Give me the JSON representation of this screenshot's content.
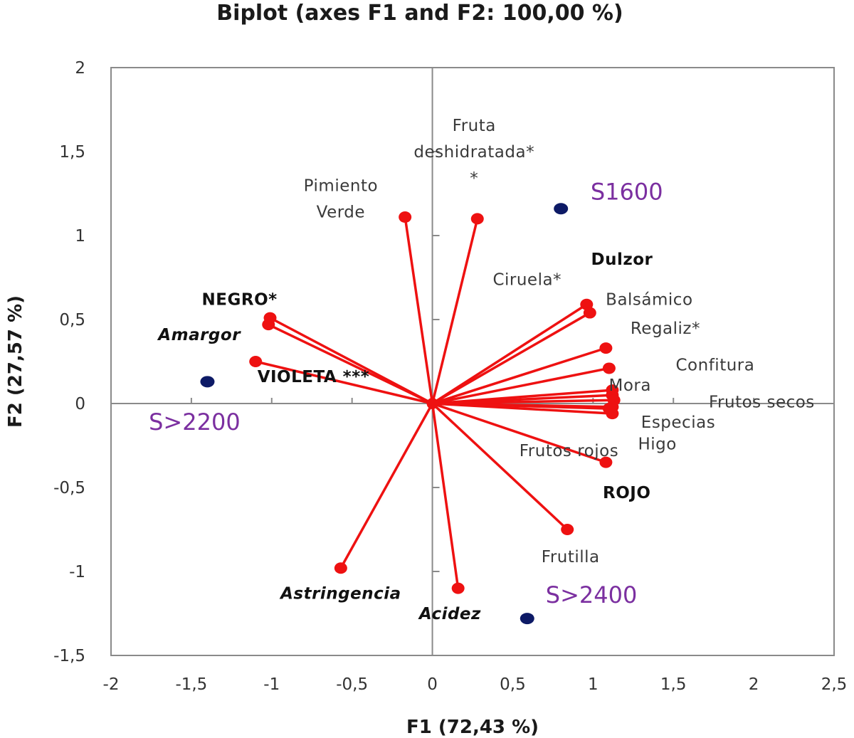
{
  "chart_data": {
    "type": "scatter",
    "title": "Biplot (axes F1 and F2: 100,00 %)",
    "xlabel": "F1 (72,43 %)",
    "ylabel": "F2 (27,57 %)",
    "xlim": [
      -2,
      2.5
    ],
    "ylim": [
      -1.5,
      2
    ],
    "x_ticks": [
      {
        "v": -2,
        "label": "-2"
      },
      {
        "v": -1.5,
        "label": "-1,5"
      },
      {
        "v": -1,
        "label": "-1"
      },
      {
        "v": -0.5,
        "label": "-0,5"
      },
      {
        "v": 0,
        "label": "0"
      },
      {
        "v": 0.5,
        "label": "0,5"
      },
      {
        "v": 1,
        "label": "1"
      },
      {
        "v": 1.5,
        "label": "1,5"
      },
      {
        "v": 2,
        "label": "2"
      },
      {
        "v": 2.5,
        "label": "2,5"
      }
    ],
    "y_ticks": [
      {
        "v": 2,
        "label": "2"
      },
      {
        "v": 1.5,
        "label": "1,5"
      },
      {
        "v": 1,
        "label": "1"
      },
      {
        "v": 0.5,
        "label": "0,5"
      },
      {
        "v": 0,
        "label": "0"
      },
      {
        "v": -0.5,
        "label": "-0,5"
      },
      {
        "v": -1,
        "label": "-1"
      },
      {
        "v": -1.5,
        "label": "-1,5"
      }
    ],
    "grid": false,
    "variable_color": "#ee1111",
    "observation_color": "#0d1a66",
    "observation_label_color": "#7b2fa0",
    "variables": [
      {
        "name": "Pimiento Verde",
        "lines": [
          "Pimiento",
          "Verde"
        ],
        "x": -0.17,
        "y": 1.11,
        "lx": -0.57,
        "ly": 1.22,
        "style": "normal"
      },
      {
        "name": "Fruta deshidratada**",
        "lines": [
          "Fruta",
          "deshidratada*",
          "*"
        ],
        "x": 0.28,
        "y": 1.1,
        "lx": 0.26,
        "ly": 1.5,
        "style": "normal"
      },
      {
        "name": "Ciruela*",
        "lines": [
          "Ciruela*"
        ],
        "x": 0.96,
        "y": 0.59,
        "lx": 0.59,
        "ly": 0.74,
        "style": "normal"
      },
      {
        "name": "Dulzor",
        "lines": [
          "Dulzor"
        ],
        "x": 0.98,
        "y": 0.54,
        "lx": 1.18,
        "ly": 0.86,
        "style": "bold"
      },
      {
        "name": "Balsámico",
        "lines": [
          "Balsámico"
        ],
        "x": 1.08,
        "y": 0.33,
        "lx": 1.35,
        "ly": 0.62,
        "style": "normal"
      },
      {
        "name": "Regaliz*",
        "lines": [
          "Regaliz*"
        ],
        "x": 1.1,
        "y": 0.21,
        "lx": 1.45,
        "ly": 0.45,
        "style": "normal"
      },
      {
        "name": "Confitura",
        "lines": [
          "Confitura"
        ],
        "x": 1.12,
        "y": 0.08,
        "lx": 1.76,
        "ly": 0.23,
        "style": "normal"
      },
      {
        "name": "Mora",
        "lines": [
          "Mora"
        ],
        "x": 1.12,
        "y": 0.05,
        "lx": 1.23,
        "ly": 0.11,
        "style": "normal"
      },
      {
        "name": "Frutos secos",
        "lines": [
          "Frutos secos"
        ],
        "x": 1.13,
        "y": 0.02,
        "lx": 2.05,
        "ly": 0.01,
        "style": "normal"
      },
      {
        "name": "Especias",
        "lines": [
          "Especias"
        ],
        "x": 1.12,
        "y": -0.02,
        "lx": 1.53,
        "ly": -0.11,
        "style": "normal"
      },
      {
        "name": "Higo",
        "lines": [
          "Higo"
        ],
        "x": 1.12,
        "y": -0.06,
        "lx": 1.4,
        "ly": -0.24,
        "style": "normal"
      },
      {
        "name": "Frutos rojos",
        "lines": [
          "Frutos rojos"
        ],
        "x": 1.1,
        "y": -0.03,
        "lx": 0.85,
        "ly": -0.28,
        "style": "normal"
      },
      {
        "name": "ROJO",
        "lines": [
          "ROJO"
        ],
        "x": 1.08,
        "y": -0.35,
        "lx": 1.21,
        "ly": -0.53,
        "style": "bold"
      },
      {
        "name": "Frutilla",
        "lines": [
          "Frutilla"
        ],
        "x": 0.84,
        "y": -0.75,
        "lx": 0.86,
        "ly": -0.91,
        "style": "normal"
      },
      {
        "name": "Acidez",
        "lines": [
          "Acidez"
        ],
        "x": 0.16,
        "y": -1.1,
        "lx": 0.11,
        "ly": -1.25,
        "style": "bold-italic"
      },
      {
        "name": "Astringencia",
        "lines": [
          "Astringencia"
        ],
        "x": -0.57,
        "y": -0.98,
        "lx": -0.57,
        "ly": -1.13,
        "style": "bold-italic"
      },
      {
        "name": "NEGRO*",
        "lines": [
          "NEGRO*"
        ],
        "x": -1.01,
        "y": 0.51,
        "lx": -1.2,
        "ly": 0.62,
        "style": "bold"
      },
      {
        "name": "Amargor",
        "lines": [
          "Amargor"
        ],
        "x": -1.02,
        "y": 0.47,
        "lx": -1.45,
        "ly": 0.41,
        "style": "bold-italic"
      },
      {
        "name": "VIOLETA ***",
        "lines": [
          "VIOLETA ***"
        ],
        "x": -1.1,
        "y": 0.25,
        "lx": -0.74,
        "ly": 0.16,
        "style": "bold"
      }
    ],
    "observations": [
      {
        "name": "S1600",
        "x": 0.8,
        "y": 1.16,
        "lx": 1.21,
        "ly": 1.26
      },
      {
        "name": "S>2200",
        "x": -1.4,
        "y": 0.13,
        "lx": -1.48,
        "ly": -0.11
      },
      {
        "name": "S>2400",
        "x": 0.59,
        "y": -1.28,
        "lx": 0.99,
        "ly": -1.14
      }
    ]
  }
}
